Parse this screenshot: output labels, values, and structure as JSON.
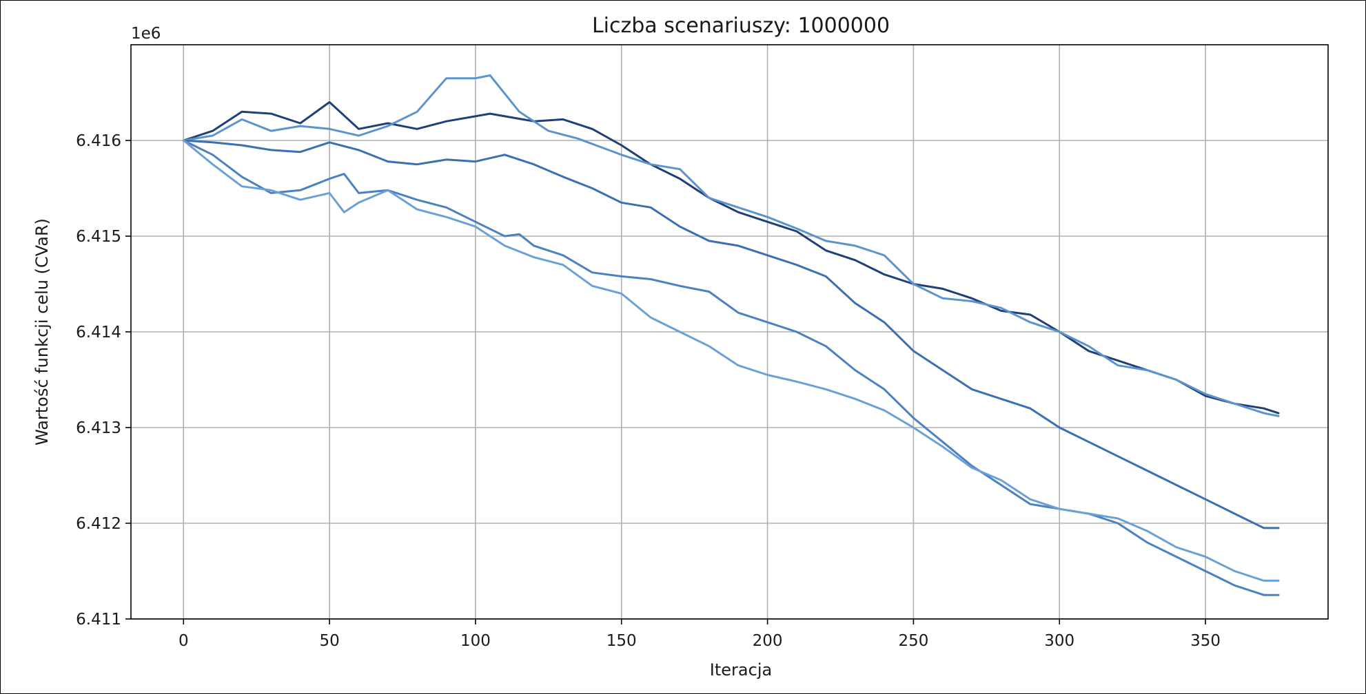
{
  "chart_data": {
    "type": "line",
    "title": "Liczba scenariuszy: 1000000",
    "xlabel": "Iteracja",
    "ylabel": "Wartość funkcji celu (CVaR)",
    "y_offset_label": "1e6",
    "xlim": [
      -18,
      392
    ],
    "ylim": [
      6.411,
      6.417
    ],
    "x_ticks": [
      0,
      50,
      100,
      150,
      200,
      250,
      300,
      350
    ],
    "x_tick_labels": [
      "0",
      "50",
      "100",
      "150",
      "200",
      "250",
      "300",
      "350"
    ],
    "y_ticks": [
      6.411,
      6.412,
      6.413,
      6.414,
      6.415,
      6.416
    ],
    "y_tick_labels": [
      "6.411",
      "6.412",
      "6.413",
      "6.414",
      "6.415",
      "6.416"
    ],
    "grid": true,
    "series": [
      {
        "color": "#1f3f7a",
        "points": [
          [
            0,
            6.416
          ],
          [
            10,
            6.4161
          ],
          [
            20,
            6.4163
          ],
          [
            30,
            6.41628
          ],
          [
            40,
            6.41618
          ],
          [
            50,
            6.4164
          ],
          [
            60,
            6.41612
          ],
          [
            70,
            6.41618
          ],
          [
            80,
            6.41612
          ],
          [
            90,
            6.4162
          ],
          [
            105,
            6.41628
          ],
          [
            120,
            6.4162
          ],
          [
            130,
            6.41622
          ],
          [
            140,
            6.41612
          ],
          [
            150,
            6.41595
          ],
          [
            160,
            6.41575
          ],
          [
            170,
            6.4156
          ],
          [
            180,
            6.4154
          ],
          [
            190,
            6.41525
          ],
          [
            200,
            6.41515
          ],
          [
            210,
            6.41505
          ],
          [
            220,
            6.41485
          ],
          [
            230,
            6.41475
          ],
          [
            240,
            6.4146
          ],
          [
            250,
            6.4145
          ],
          [
            260,
            6.41445
          ],
          [
            270,
            6.41435
          ],
          [
            280,
            6.41422
          ],
          [
            290,
            6.41418
          ],
          [
            300,
            6.414
          ],
          [
            310,
            6.4138
          ],
          [
            320,
            6.4137
          ],
          [
            330,
            6.4136
          ],
          [
            340,
            6.4135
          ],
          [
            350,
            6.41333
          ],
          [
            360,
            6.41325
          ],
          [
            370,
            6.4132
          ],
          [
            375,
            6.41315
          ]
        ]
      },
      {
        "color": "#5b93cc",
        "points": [
          [
            0,
            6.416
          ],
          [
            10,
            6.41605
          ],
          [
            20,
            6.41622
          ],
          [
            30,
            6.4161
          ],
          [
            40,
            6.41615
          ],
          [
            50,
            6.41612
          ],
          [
            60,
            6.41605
          ],
          [
            70,
            6.41615
          ],
          [
            80,
            6.4163
          ],
          [
            90,
            6.41665
          ],
          [
            100,
            6.41665
          ],
          [
            105,
            6.41668
          ],
          [
            115,
            6.4163
          ],
          [
            125,
            6.4161
          ],
          [
            135,
            6.41602
          ],
          [
            150,
            6.41585
          ],
          [
            160,
            6.41575
          ],
          [
            170,
            6.4157
          ],
          [
            180,
            6.4154
          ],
          [
            190,
            6.4153
          ],
          [
            200,
            6.4152
          ],
          [
            210,
            6.41508
          ],
          [
            220,
            6.41495
          ],
          [
            230,
            6.4149
          ],
          [
            240,
            6.4148
          ],
          [
            250,
            6.4145
          ],
          [
            260,
            6.41435
          ],
          [
            270,
            6.41432
          ],
          [
            280,
            6.41425
          ],
          [
            290,
            6.4141
          ],
          [
            300,
            6.414
          ],
          [
            310,
            6.41385
          ],
          [
            320,
            6.41365
          ],
          [
            330,
            6.4136
          ],
          [
            340,
            6.4135
          ],
          [
            350,
            6.41335
          ],
          [
            360,
            6.41325
          ],
          [
            370,
            6.41315
          ],
          [
            375,
            6.41312
          ]
        ]
      },
      {
        "color": "#3a6fb4",
        "points": [
          [
            0,
            6.416
          ],
          [
            10,
            6.41598
          ],
          [
            20,
            6.41595
          ],
          [
            30,
            6.4159
          ],
          [
            40,
            6.41588
          ],
          [
            50,
            6.41598
          ],
          [
            60,
            6.4159
          ],
          [
            70,
            6.41578
          ],
          [
            80,
            6.41575
          ],
          [
            90,
            6.4158
          ],
          [
            100,
            6.41578
          ],
          [
            110,
            6.41585
          ],
          [
            120,
            6.41575
          ],
          [
            130,
            6.41562
          ],
          [
            140,
            6.4155
          ],
          [
            150,
            6.41535
          ],
          [
            160,
            6.4153
          ],
          [
            170,
            6.4151
          ],
          [
            180,
            6.41495
          ],
          [
            190,
            6.4149
          ],
          [
            200,
            6.4148
          ],
          [
            210,
            6.4147
          ],
          [
            220,
            6.41458
          ],
          [
            230,
            6.4143
          ],
          [
            240,
            6.4141
          ],
          [
            250,
            6.4138
          ],
          [
            260,
            6.4136
          ],
          [
            270,
            6.4134
          ],
          [
            280,
            6.4133
          ],
          [
            290,
            6.4132
          ],
          [
            300,
            6.413
          ],
          [
            310,
            6.41285
          ],
          [
            320,
            6.4127
          ],
          [
            330,
            6.41255
          ],
          [
            340,
            6.4124
          ],
          [
            350,
            6.41225
          ],
          [
            360,
            6.4121
          ],
          [
            370,
            6.41195
          ],
          [
            375,
            6.41195
          ]
        ]
      },
      {
        "color": "#4b80c2",
        "points": [
          [
            0,
            6.416
          ],
          [
            10,
            6.41585
          ],
          [
            20,
            6.41562
          ],
          [
            30,
            6.41545
          ],
          [
            40,
            6.41548
          ],
          [
            50,
            6.4156
          ],
          [
            55,
            6.41565
          ],
          [
            60,
            6.41545
          ],
          [
            70,
            6.41548
          ],
          [
            80,
            6.41538
          ],
          [
            90,
            6.4153
          ],
          [
            100,
            6.41515
          ],
          [
            110,
            6.415
          ],
          [
            115,
            6.41502
          ],
          [
            120,
            6.4149
          ],
          [
            130,
            6.4148
          ],
          [
            140,
            6.41462
          ],
          [
            150,
            6.41458
          ],
          [
            160,
            6.41455
          ],
          [
            170,
            6.41448
          ],
          [
            180,
            6.41442
          ],
          [
            190,
            6.4142
          ],
          [
            200,
            6.4141
          ],
          [
            210,
            6.414
          ],
          [
            220,
            6.41385
          ],
          [
            230,
            6.4136
          ],
          [
            240,
            6.4134
          ],
          [
            250,
            6.4131
          ],
          [
            260,
            6.41285
          ],
          [
            270,
            6.4126
          ],
          [
            280,
            6.4124
          ],
          [
            290,
            6.4122
          ],
          [
            300,
            6.41215
          ],
          [
            310,
            6.4121
          ],
          [
            320,
            6.412
          ],
          [
            330,
            6.4118
          ],
          [
            340,
            6.41165
          ],
          [
            350,
            6.4115
          ],
          [
            360,
            6.41135
          ],
          [
            370,
            6.41125
          ],
          [
            375,
            6.41125
          ]
        ]
      },
      {
        "color": "#6aa0d6",
        "points": [
          [
            0,
            6.416
          ],
          [
            10,
            6.41575
          ],
          [
            20,
            6.41552
          ],
          [
            30,
            6.41548
          ],
          [
            40,
            6.41538
          ],
          [
            50,
            6.41545
          ],
          [
            55,
            6.41525
          ],
          [
            60,
            6.41535
          ],
          [
            70,
            6.41548
          ],
          [
            80,
            6.41528
          ],
          [
            90,
            6.4152
          ],
          [
            100,
            6.4151
          ],
          [
            110,
            6.4149
          ],
          [
            120,
            6.41478
          ],
          [
            130,
            6.4147
          ],
          [
            140,
            6.41448
          ],
          [
            150,
            6.4144
          ],
          [
            160,
            6.41415
          ],
          [
            170,
            6.414
          ],
          [
            180,
            6.41385
          ],
          [
            190,
            6.41365
          ],
          [
            200,
            6.41355
          ],
          [
            210,
            6.41348
          ],
          [
            220,
            6.4134
          ],
          [
            230,
            6.4133
          ],
          [
            240,
            6.41318
          ],
          [
            250,
            6.413
          ],
          [
            260,
            6.4128
          ],
          [
            270,
            6.41258
          ],
          [
            280,
            6.41245
          ],
          [
            290,
            6.41225
          ],
          [
            300,
            6.41215
          ],
          [
            310,
            6.4121
          ],
          [
            320,
            6.41205
          ],
          [
            330,
            6.41192
          ],
          [
            340,
            6.41175
          ],
          [
            350,
            6.41165
          ],
          [
            360,
            6.4115
          ],
          [
            370,
            6.4114
          ],
          [
            375,
            6.4114
          ]
        ]
      }
    ]
  }
}
